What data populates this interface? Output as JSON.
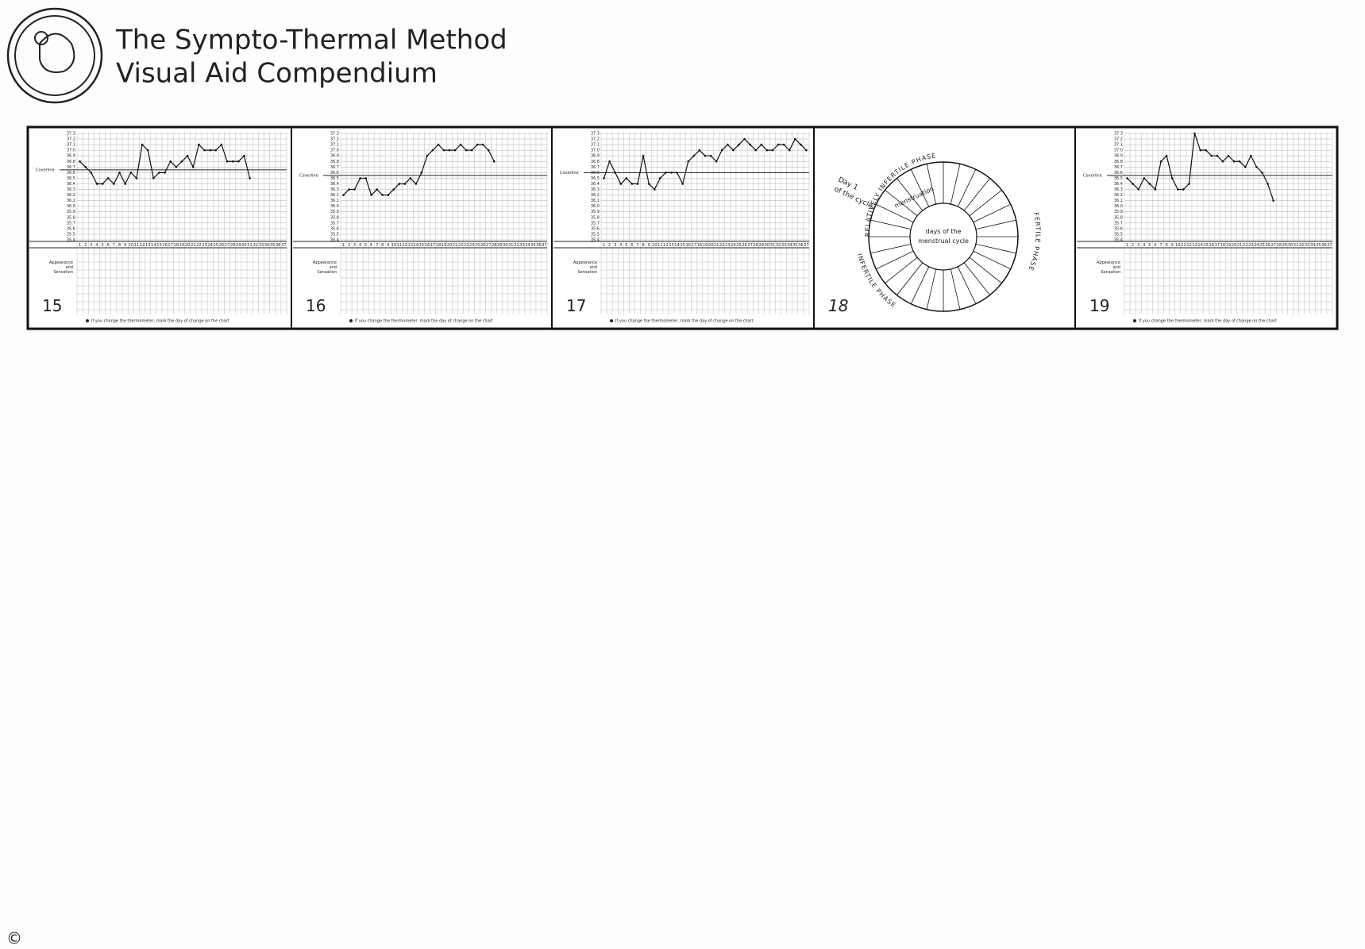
{
  "header": {
    "title_line1": "The Sympto-Thermal Method",
    "title_line2": "Visual Aid Compendium"
  },
  "temp_axis": {
    "ylim": [
      35.4,
      37.3
    ],
    "yticks": [
      35.4,
      35.5,
      35.6,
      35.7,
      35.8,
      35.9,
      {
        "value": 36,
        "label": "36.0"
      },
      36.1,
      36.2,
      36.3,
      36.4,
      36.5,
      36.6,
      36.7,
      36.8,
      36.9,
      {
        "value": 37,
        "label": "37.0"
      },
      37.1,
      37.2,
      37.3
    ]
  },
  "cycle_days": [
    1,
    2,
    3,
    4,
    5,
    6,
    7,
    8,
    9,
    10,
    11,
    12,
    13,
    14,
    15,
    16,
    17,
    18,
    19,
    20,
    21,
    22,
    23,
    24,
    25,
    26,
    27,
    28,
    29,
    30,
    31,
    32,
    33,
    34,
    35,
    36,
    37
  ],
  "labels": {
    "coverline": "Coverline",
    "appearance": "Appearance",
    "and": "and",
    "sensation": "Sensation",
    "footnote": "If you change the thermometer, mark the day of change on the chart"
  },
  "panels": [
    {
      "number": "15",
      "type": "line",
      "coverline": 36.65,
      "temps": [
        36.8,
        36.7,
        36.6,
        36.4,
        36.4,
        36.5,
        36.4,
        36.6,
        36.4,
        36.6,
        36.5,
        37.1,
        37.0,
        36.5,
        36.6,
        36.6,
        36.8,
        36.7,
        36.8,
        36.9,
        36.7,
        37.1,
        37.0,
        37.0,
        37.0,
        37.1,
        36.8,
        36.8,
        36.8,
        36.9,
        36.5
      ]
    },
    {
      "number": "16",
      "type": "line",
      "coverline": 36.55,
      "temps": [
        36.2,
        36.3,
        36.3,
        36.5,
        36.5,
        36.2,
        36.3,
        36.2,
        36.2,
        36.3,
        36.4,
        36.4,
        36.5,
        36.4,
        36.6,
        36.9,
        37.0,
        37.1,
        37.0,
        37.0,
        37.0,
        37.1,
        37.0,
        37.0,
        37.1,
        37.1,
        37.0,
        36.8
      ]
    },
    {
      "number": "17",
      "type": "line",
      "coverline": 36.6,
      "temps": [
        36.5,
        36.8,
        36.6,
        36.4,
        36.5,
        36.4,
        36.4,
        36.9,
        36.4,
        36.3,
        36.5,
        36.6,
        36.6,
        36.6,
        36.4,
        36.8,
        36.9,
        37.0,
        36.9,
        36.9,
        36.8,
        37.0,
        37.1,
        37.0,
        37.1,
        37.2,
        37.1,
        37.0,
        37.1,
        37.0,
        37.0,
        37.1,
        37.1,
        37.0,
        37.2,
        37.1,
        37.0
      ]
    },
    {
      "number": "18",
      "type": "wheel",
      "day1": "Day 1",
      "of_cycle": "of the cycle",
      "menstruation": "menstruation",
      "center_line1": "days of the",
      "center_line2": "menstrual cycle",
      "top_arc": "RELATIVELY INFERTILE PHASE",
      "right_arc": "FERTILE PHASE",
      "bottom_arc": "INFERTILE PHASE"
    },
    {
      "number": "19",
      "type": "line",
      "coverline": 36.55,
      "temps": [
        36.5,
        36.4,
        36.3,
        36.5,
        36.4,
        36.3,
        36.8,
        36.9,
        36.5,
        36.3,
        36.3,
        36.4,
        37.3,
        37.0,
        37.0,
        36.9,
        36.9,
        36.8,
        36.9,
        36.8,
        36.8,
        36.7,
        36.9,
        36.7,
        36.6,
        36.4,
        36.1
      ]
    }
  ],
  "copyright": "©"
}
